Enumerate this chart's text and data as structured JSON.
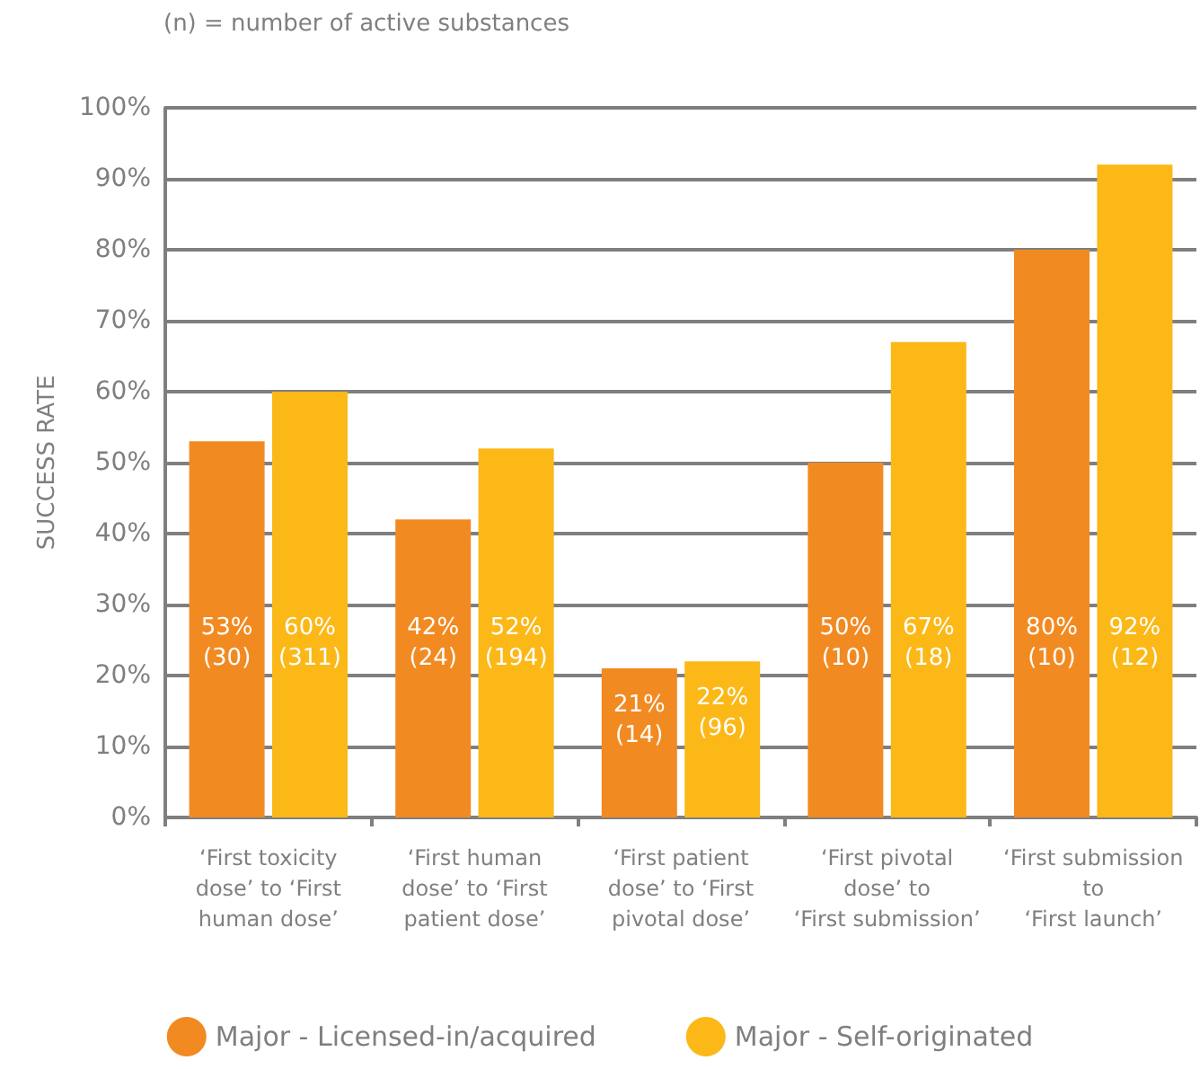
{
  "chart_data": {
    "type": "bar",
    "subtitle": "(n) = number of active substances",
    "ylabel": "SUCCESS RATE",
    "categories": [
      "‘First toxicity\ndose’ to ‘First\nhuman dose’",
      "‘First human\ndose’ to ‘First\npatient dose’",
      "‘First patient\ndose’ to ‘First\npivotal dose’",
      "‘First pivotal\ndose’ to\n‘First submission’",
      "‘First submission\nto\n‘First launch’"
    ],
    "series": [
      {
        "name": "Major - Licensed-in/acquired",
        "color": "#f28a22",
        "values": [
          53,
          42,
          21,
          50,
          80
        ],
        "value_labels": [
          "53%\n(30)",
          "42%\n(24)",
          "21%\n(14)",
          "50%\n(10)",
          "80%\n(10)"
        ]
      },
      {
        "name": "Major - Self-originated",
        "color": "#fbb817",
        "values": [
          60,
          52,
          22,
          67,
          92
        ],
        "value_labels": [
          "60%\n(311)",
          "52%\n(194)",
          "22%\n(96)",
          "67%\n(18)",
          "92%\n(12)"
        ]
      }
    ],
    "ylim": [
      0,
      100
    ],
    "yticks": [
      {
        "value": 0,
        "label": "0%"
      },
      {
        "value": 10,
        "label": "10%"
      },
      {
        "value": 20,
        "label": "20%"
      },
      {
        "value": 30,
        "label": "30%"
      },
      {
        "value": 40,
        "label": "40%"
      },
      {
        "value": 50,
        "label": "50%"
      },
      {
        "value": 60,
        "label": "60%"
      },
      {
        "value": 70,
        "label": "70%"
      },
      {
        "value": 80,
        "label": "80%"
      },
      {
        "value": 90,
        "label": "90%"
      },
      {
        "value": 100,
        "label": "100%"
      }
    ],
    "grid": "y",
    "legend": "bottom"
  }
}
